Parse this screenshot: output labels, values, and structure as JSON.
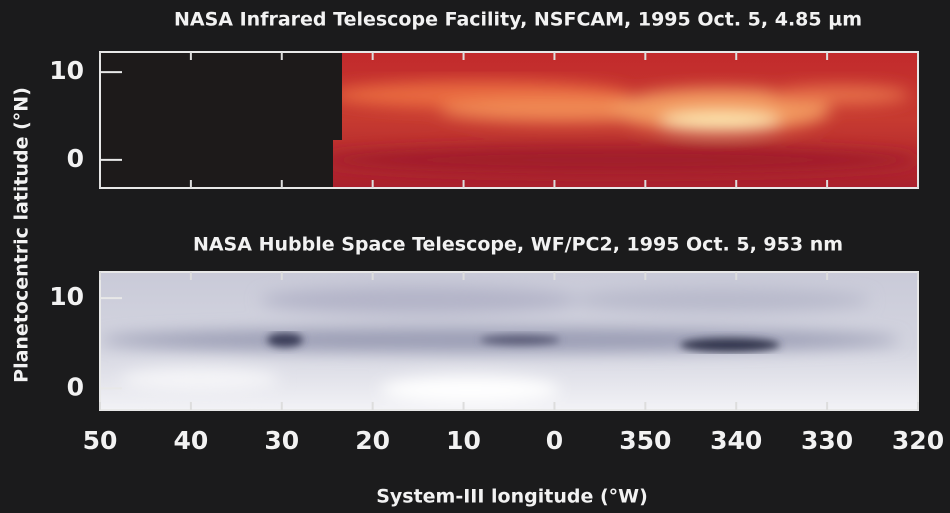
{
  "chart_data": {
    "type": "image",
    "ylabel": "Planetocentric latitude (°N)",
    "xlabel": "System-III longitude (°W)",
    "xlim": [
      50,
      -40
    ],
    "xticks": [
      50,
      40,
      30,
      20,
      10,
      0,
      {
        "value": -10,
        "label": "350"
      },
      {
        "value": -20,
        "label": "340"
      },
      {
        "value": -30,
        "label": "330"
      },
      {
        "value": -40,
        "label": "320"
      }
    ],
    "panels": [
      {
        "title": "NASA Infrared Telescope Facility, NSFCAM, 1995 Oct. 5, 4.85 µm",
        "ylim": [
          -3.2,
          12.3
        ],
        "yticks": [
          0,
          10
        ]
      },
      {
        "title": "NASA Hubble Space Telescope, WF/PC2, 1995 Oct. 5, 953 nm",
        "ylim": [
          -2.4,
          12.9
        ],
        "yticks": [
          0,
          10
        ]
      }
    ]
  }
}
